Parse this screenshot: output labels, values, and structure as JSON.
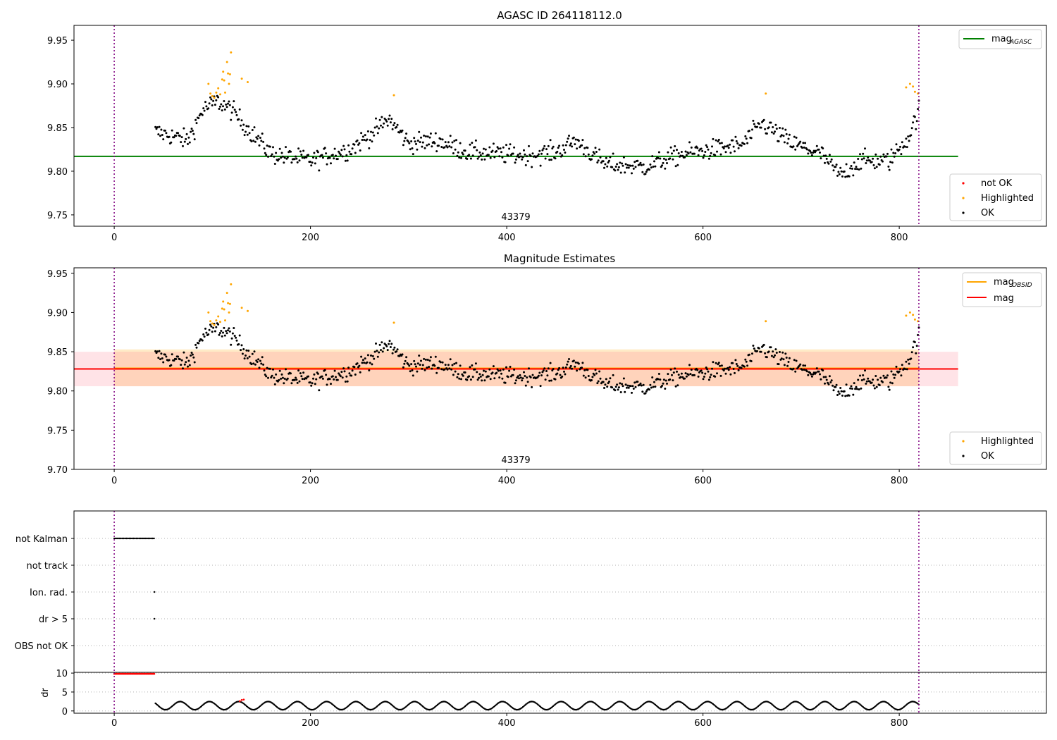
{
  "chart_data": [
    {
      "type": "scatter",
      "title": "AGASC ID 264118112.0",
      "annotation": "43379",
      "xlim": [
        -41,
        950
      ],
      "ylim": [
        9.737,
        9.967
      ],
      "x_ticks": [
        0,
        200,
        400,
        600,
        800
      ],
      "y_ticks": [
        9.75,
        9.8,
        9.85,
        9.9,
        9.95
      ],
      "y_tick_labels": [
        "9.75",
        "9.80",
        "9.85",
        "9.90",
        "9.95"
      ],
      "vlines": [
        0,
        820
      ],
      "hlines": [
        {
          "name": "mag_AGASC",
          "value": 9.817,
          "x_range": [
            -41,
            860
          ],
          "color": "#008000"
        }
      ],
      "legend_lines": [
        {
          "label": "mag",
          "sub": "AGASC",
          "color": "#008000"
        }
      ],
      "legend_points": [
        {
          "label": "not OK",
          "color": "#ff0000"
        },
        {
          "label": "Highlighted",
          "color": "#ffa500"
        },
        {
          "label": "OK",
          "color": "#000000"
        }
      ],
      "x_range": [
        42,
        820
      ],
      "n_points": 780,
      "highlighted_points": [
        [
          96,
          9.9
        ],
        [
          98,
          9.889
        ],
        [
          100,
          9.886
        ],
        [
          102,
          9.884
        ],
        [
          104,
          9.89
        ],
        [
          106,
          9.895
        ],
        [
          108,
          9.888
        ],
        [
          110,
          9.905
        ],
        [
          111,
          9.914
        ],
        [
          112,
          9.904
        ],
        [
          113,
          9.89
        ],
        [
          115,
          9.925
        ],
        [
          116,
          9.912
        ],
        [
          117,
          9.9
        ],
        [
          118,
          9.911
        ],
        [
          119,
          9.936
        ],
        [
          130,
          9.906
        ],
        [
          136,
          9.902
        ],
        [
          285,
          9.887
        ],
        [
          664,
          9.889
        ],
        [
          807,
          9.896
        ],
        [
          811,
          9.9
        ],
        [
          814,
          9.897
        ],
        [
          816,
          9.891
        ],
        [
          819,
          9.889
        ]
      ],
      "highlight_colors": {
        "ok": "#000000",
        "highlighted": "#ffa500"
      }
    },
    {
      "type": "scatter",
      "title": "Magnitude Estimates",
      "annotation": "43379",
      "xlim": [
        -41,
        950
      ],
      "ylim": [
        9.7,
        9.957
      ],
      "x_ticks": [
        0,
        200,
        400,
        600,
        800
      ],
      "y_ticks": [
        9.7,
        9.75,
        9.8,
        9.85,
        9.9,
        9.95
      ],
      "y_tick_labels": [
        "9.70",
        "9.75",
        "9.80",
        "9.85",
        "9.90",
        "9.95"
      ],
      "vlines": [
        0,
        820
      ],
      "hlines": [
        {
          "name": "mag_OBSID",
          "value": 9.829,
          "x_range": [
            0,
            820
          ],
          "color": "#ffa500"
        },
        {
          "name": "mag",
          "value": 9.828,
          "x_range": [
            -41,
            860
          ],
          "color": "#ff0000"
        }
      ],
      "bands": [
        {
          "name": "mag_OBSID_range",
          "y_range": [
            9.806,
            9.853
          ],
          "x_range": [
            0,
            820
          ],
          "color": "#ffa500"
        },
        {
          "name": "mag_range",
          "y_range": [
            9.806,
            9.85
          ],
          "x_range": [
            -41,
            860
          ],
          "color": "#ff8090"
        }
      ],
      "legend_lines": [
        {
          "label": "mag",
          "sub": "OBSID",
          "color": "#ffa500"
        },
        {
          "label": "mag",
          "sub": "",
          "color": "#ff0000"
        }
      ],
      "legend_points": [
        {
          "label": "Highlighted",
          "color": "#ffa500"
        },
        {
          "label": "OK",
          "color": "#000000"
        }
      ]
    },
    {
      "type": "scatter",
      "title": "",
      "xlim": [
        -41,
        950
      ],
      "categories": [
        "not Kalman",
        "not track",
        "Ion. rad.",
        "dr > 5",
        "OBS not OK"
      ],
      "vlines": [
        0,
        820
      ],
      "flag_points": {
        "not Kalman": {
          "x_range": [
            0,
            41
          ],
          "step": 1.4
        },
        "Ion. rad.": {
          "x": [
            41
          ]
        },
        "dr > 5": {
          "x": [
            41
          ]
        }
      }
    },
    {
      "type": "scatter",
      "title": "",
      "ylabel": "dr",
      "xlim": [
        -41,
        950
      ],
      "ylim": [
        -0.6,
        10.2
      ],
      "x_ticks": [
        0,
        200,
        400,
        600,
        800
      ],
      "y_ticks": [
        0,
        5,
        10
      ],
      "y_tick_labels": [
        "0",
        "5",
        "10"
      ],
      "vlines": [
        0,
        820
      ],
      "red_segment": {
        "x_range": [
          0,
          41
        ],
        "value": 9.8
      },
      "red_points_late": [
        [
          128,
          2.6
        ],
        [
          130,
          2.9
        ],
        [
          132,
          3.0
        ]
      ],
      "dr_range": [
        0.2,
        2.6
      ]
    }
  ],
  "colors": {
    "vline": "#800080",
    "axis": "#000000",
    "grid": "#b0b0b0"
  }
}
